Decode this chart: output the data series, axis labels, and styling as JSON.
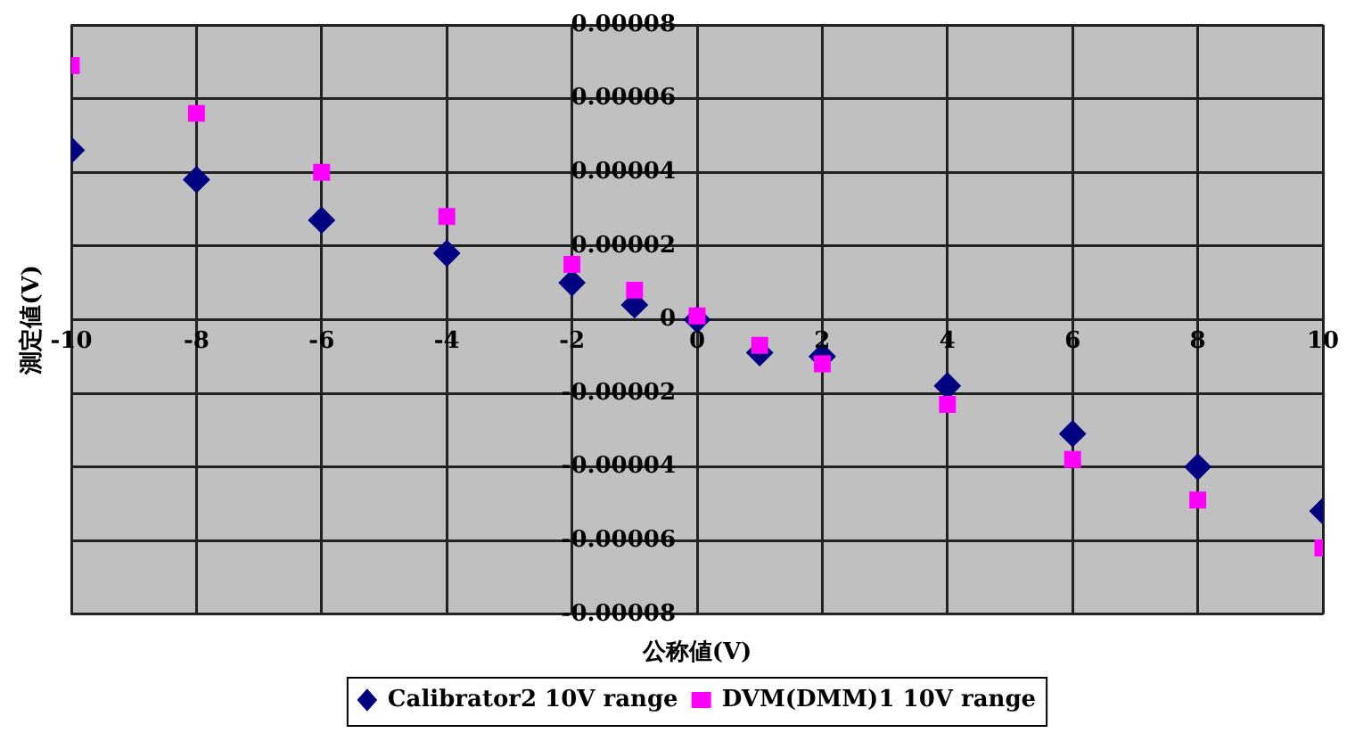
{
  "chart_data": {
    "type": "scatter",
    "xlabel": "公称値(V)",
    "ylabel": "測定値(V)",
    "xlim": [
      -10,
      10
    ],
    "xticks": [
      -10,
      -8,
      -6,
      -4,
      -2,
      0,
      2,
      4,
      6,
      8,
      10
    ],
    "ylim": [
      -8e-05,
      8e-05
    ],
    "yticks": [
      {
        "value": -8e-05,
        "label": "-0.00008"
      },
      {
        "value": -6e-05,
        "label": "-0.00006"
      },
      {
        "value": -4e-05,
        "label": "-0.00004"
      },
      {
        "value": -2e-05,
        "label": "-0.00002"
      },
      {
        "value": 0,
        "label": "0"
      },
      {
        "value": 2e-05,
        "label": "0.00002"
      },
      {
        "value": 4e-05,
        "label": "0.00004"
      },
      {
        "value": 6e-05,
        "label": "0.00006"
      },
      {
        "value": 8e-05,
        "label": "0.00008"
      }
    ],
    "grid": true,
    "legend": "bottom",
    "series": [
      {
        "name": "Calibrator2 10V range",
        "color": "#000080",
        "marker": "diamond",
        "x": [
          -10,
          -8,
          -6,
          -4,
          -2,
          -1,
          0,
          1,
          2,
          4,
          6,
          8,
          10
        ],
        "values": [
          4.6e-05,
          3.8e-05,
          2.7e-05,
          1.8e-05,
          1e-05,
          4e-06,
          0,
          -9e-06,
          -1e-05,
          -1.8e-05,
          -3.1e-05,
          -4e-05,
          -5.2e-05
        ]
      },
      {
        "name": "DVM(DMM)1 10V range",
        "color": "#ff00ff",
        "marker": "square",
        "x": [
          -10,
          -8,
          -6,
          -4,
          -2,
          -1,
          0,
          1,
          2,
          4,
          6,
          8,
          10
        ],
        "values": [
          6.9e-05,
          5.6e-05,
          4e-05,
          2.8e-05,
          1.5e-05,
          8e-06,
          1e-06,
          -7e-06,
          -1.2e-05,
          -2.3e-05,
          -3.8e-05,
          -4.9e-05,
          -6.2e-05
        ]
      }
    ]
  }
}
